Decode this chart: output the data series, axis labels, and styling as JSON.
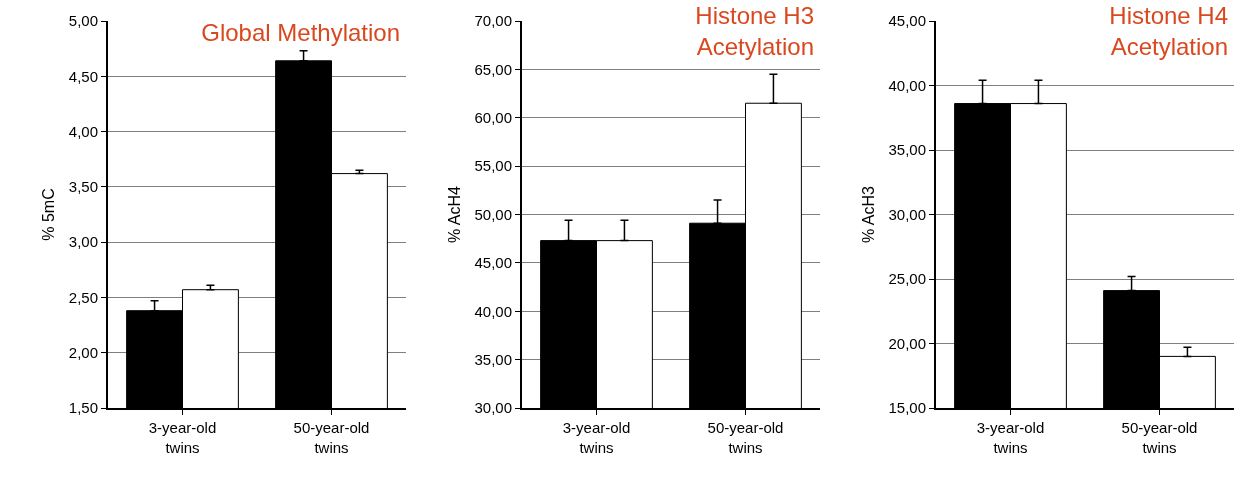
{
  "chart_data": [
    {
      "type": "bar",
      "title": "Global Methylation",
      "ylabel": "% 5mC",
      "categories": [
        "3-year-old\ntwins",
        "50-year-old\ntwins"
      ],
      "series": [
        {
          "color": "#000000",
          "values": [
            2.38,
            4.64
          ],
          "errors": [
            [
              2.38,
              2.47
            ],
            [
              4.64,
              4.73
            ]
          ]
        },
        {
          "color": "#ffffff",
          "values": [
            2.57,
            3.62
          ],
          "errors": [
            [
              2.57,
              2.61
            ],
            [
              3.62,
              3.65
            ]
          ]
        }
      ],
      "ylim": [
        1.5,
        5
      ],
      "yticks": [
        {
          "value": 1.5,
          "label": "1,50"
        },
        {
          "value": 2,
          "label": "2,00"
        },
        {
          "value": 2.5,
          "label": "2,50"
        },
        {
          "value": 3,
          "label": "3,00"
        },
        {
          "value": 3.5,
          "label": "3,50"
        },
        {
          "value": 4,
          "label": "4,00"
        },
        {
          "value": 4.5,
          "label": "4,50"
        },
        {
          "value": 5,
          "label": "5,00"
        }
      ],
      "grid": "y"
    },
    {
      "type": "bar",
      "title": "Histone H3\nAcetylation",
      "ylabel": "% AcH4",
      "categories": [
        "3-year-old\ntwins",
        "50-year-old\ntwins"
      ],
      "series": [
        {
          "color": "#000000",
          "values": [
            47.3,
            49.1
          ],
          "errors": [
            [
              47.3,
              49.4
            ],
            [
              49.1,
              51.5
            ]
          ]
        },
        {
          "color": "#ffffff",
          "values": [
            47.3,
            61.5
          ],
          "errors": [
            [
              47.3,
              49.4
            ],
            [
              61.5,
              64.5
            ]
          ]
        }
      ],
      "ylim": [
        30,
        70
      ],
      "yticks": [
        {
          "value": 30,
          "label": "30,00"
        },
        {
          "value": 35,
          "label": "35,00"
        },
        {
          "value": 40,
          "label": "40,00"
        },
        {
          "value": 45,
          "label": "45,00"
        },
        {
          "value": 50,
          "label": "50,00"
        },
        {
          "value": 55,
          "label": "55,00"
        },
        {
          "value": 60,
          "label": "60,00"
        },
        {
          "value": 65,
          "label": "65,00"
        },
        {
          "value": 70,
          "label": "70,00"
        }
      ],
      "grid": "y"
    },
    {
      "type": "bar",
      "title": "Histone H4\nAcetylation",
      "ylabel": "% AcH3",
      "categories": [
        "3-year-old\ntwins",
        "50-year-old\ntwins"
      ],
      "series": [
        {
          "color": "#000000",
          "values": [
            38.6,
            24.1
          ],
          "errors": [
            [
              38.6,
              40.4
            ],
            [
              24.1,
              25.2
            ]
          ]
        },
        {
          "color": "#ffffff",
          "values": [
            38.6,
            19.0
          ],
          "errors": [
            [
              38.6,
              40.4
            ],
            [
              19.0,
              19.7
            ]
          ]
        }
      ],
      "ylim": [
        15,
        45
      ],
      "yticks": [
        {
          "value": 15,
          "label": "15,00"
        },
        {
          "value": 20,
          "label": "20,00"
        },
        {
          "value": 25,
          "label": "25,00"
        },
        {
          "value": 30,
          "label": "30,00"
        },
        {
          "value": 35,
          "label": "35,00"
        },
        {
          "value": 40,
          "label": "40,00"
        },
        {
          "value": 45,
          "label": "45,00"
        }
      ],
      "grid": "y"
    }
  ]
}
